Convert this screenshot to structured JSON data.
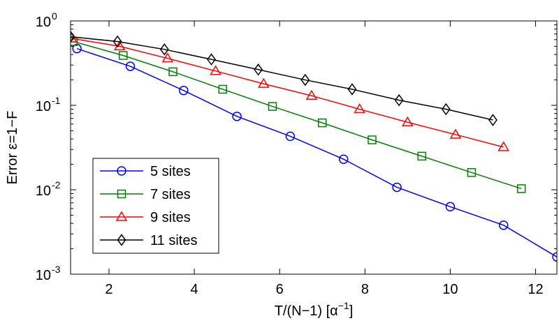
{
  "chart_data": {
    "type": "line",
    "xlabel": "T/(N−1) [α",
    "xlabel_sup": "−1",
    "xlabel_close": "]",
    "ylabel": "Error ε=1−F",
    "xlim": [
      1.1,
      12.5
    ],
    "ylim": [
      0.001,
      1
    ],
    "yscale": "log",
    "grid": false,
    "legend_position": "bottom-left",
    "x_ticks": [
      2,
      4,
      6,
      8,
      10,
      12
    ],
    "x_tick_labels": [
      "2",
      "4",
      "6",
      "8",
      "10",
      "12"
    ],
    "y_ticks": [
      0.001,
      0.01,
      0.1,
      1
    ],
    "y_tick_labels": [
      {
        "base": "10",
        "exp": "-3"
      },
      {
        "base": "10",
        "exp": "-2"
      },
      {
        "base": "10",
        "exp": "-1"
      },
      {
        "base": "10",
        "exp": "0"
      }
    ],
    "series": [
      {
        "name": "5 sites",
        "color": "#0000ff",
        "marker": "circle",
        "x": [
          1.25,
          2.5,
          3.75,
          5.0,
          6.25,
          7.5,
          8.75,
          10.0,
          11.25,
          12.5
        ],
        "y": [
          0.47,
          0.29,
          0.15,
          0.074,
          0.043,
          0.023,
          0.0107,
          0.0063,
          0.0038,
          0.0016
        ]
      },
      {
        "name": "7 sites",
        "color": "#008000",
        "marker": "square",
        "x": [
          1.167,
          2.333,
          3.5,
          4.667,
          5.833,
          7.0,
          8.167,
          9.333,
          10.5,
          11.667
        ],
        "y": [
          0.57,
          0.39,
          0.25,
          0.155,
          0.097,
          0.062,
          0.039,
          0.025,
          0.016,
          0.0103
        ]
      },
      {
        "name": "9 sites",
        "color": "#ff0000",
        "marker": "triangle",
        "x": [
          1.125,
          2.25,
          3.375,
          4.5,
          5.625,
          6.75,
          7.875,
          9.0,
          10.125,
          11.25
        ],
        "y": [
          0.62,
          0.5,
          0.36,
          0.255,
          0.18,
          0.13,
          0.09,
          0.063,
          0.045,
          0.032
        ]
      },
      {
        "name": "11 sites",
        "color": "#000000",
        "marker": "diamond",
        "x": [
          1.1,
          2.2,
          3.3,
          4.4,
          5.5,
          6.6,
          7.7,
          8.8,
          9.9,
          11.0
        ],
        "y": [
          0.65,
          0.57,
          0.46,
          0.35,
          0.265,
          0.2,
          0.155,
          0.115,
          0.09,
          0.067
        ]
      }
    ]
  }
}
